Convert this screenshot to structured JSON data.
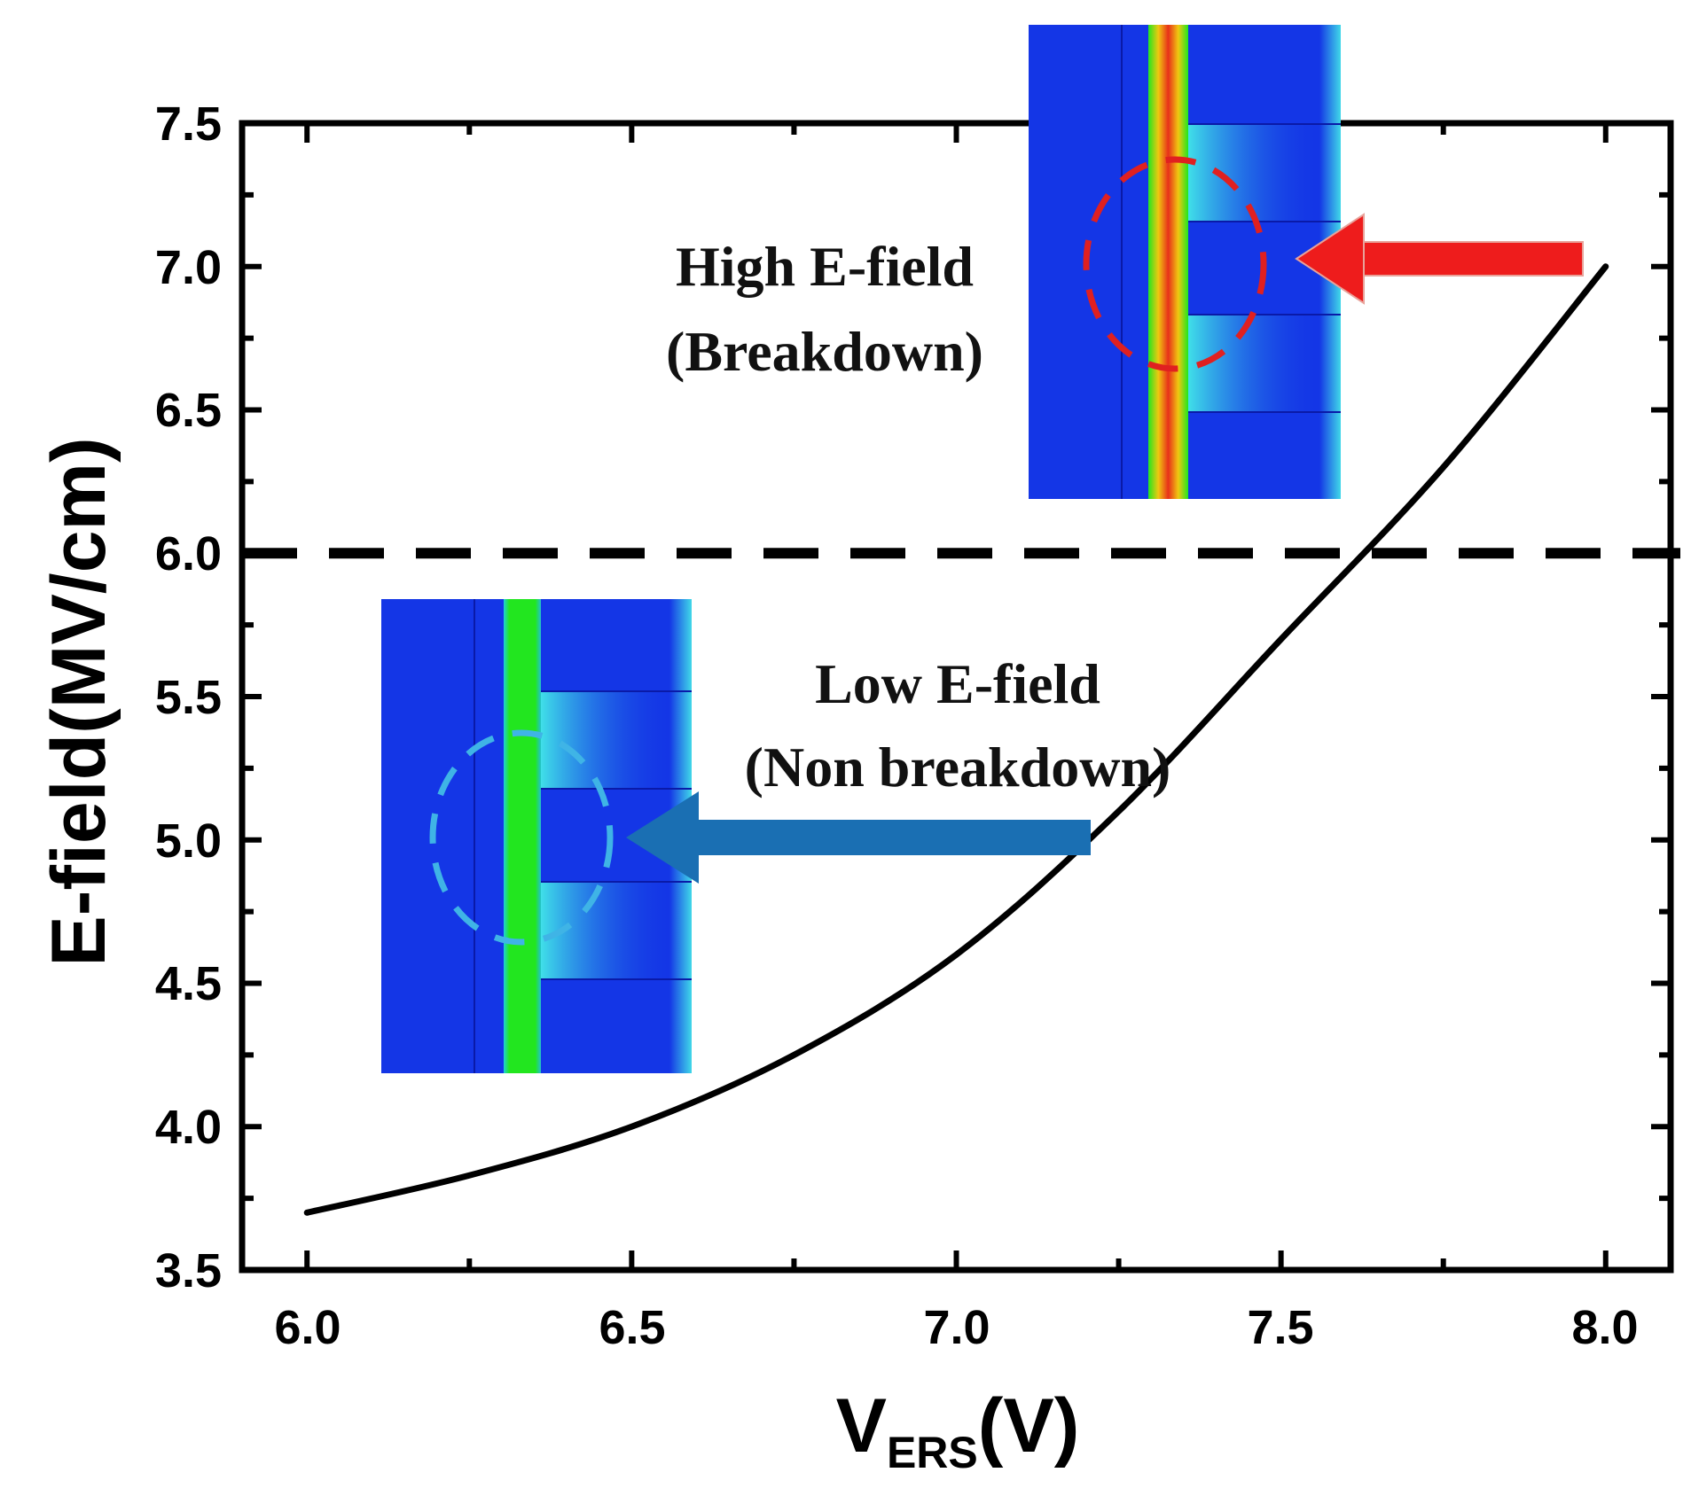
{
  "chart_data": {
    "type": "line",
    "title": "",
    "xlabel": {
      "main": "V",
      "subscript": "ERS",
      "unit": "(V)"
    },
    "ylabel": "E-field(MV/cm)",
    "xlim": [
      5.9,
      8.1
    ],
    "ylim": [
      3.5,
      7.5
    ],
    "xticks": [
      "6.0",
      "6.5",
      "7.0",
      "7.5",
      "8.0"
    ],
    "yticks": [
      "3.5",
      "4.0",
      "4.5",
      "5.0",
      "5.5",
      "6.0",
      "6.5",
      "7.0",
      "7.5"
    ],
    "x": [
      6.0,
      6.25,
      6.5,
      6.75,
      7.0,
      7.25,
      7.5,
      7.75,
      8.0
    ],
    "series": [
      {
        "name": "E-field",
        "values": [
          3.7,
          3.83,
          4.0,
          4.25,
          4.6,
          5.1,
          5.7,
          6.3,
          7.0
        ]
      }
    ],
    "threshold": {
      "value": 6.0,
      "style": "dashed"
    },
    "annotations": {
      "high": {
        "line1": "High E-field",
        "line2": "(Breakdown)",
        "arrow_color": "#ee1c1c",
        "circle_color": "#e02020"
      },
      "low": {
        "line1": "Low E-field",
        "line2": "(Non breakdown)",
        "arrow_color": "#1a6fb3",
        "circle_color": "#3fb4e6"
      }
    },
    "colors": {
      "line": "#000000",
      "field_blue": "#1436e6",
      "field_green": "#19e01e"
    }
  }
}
